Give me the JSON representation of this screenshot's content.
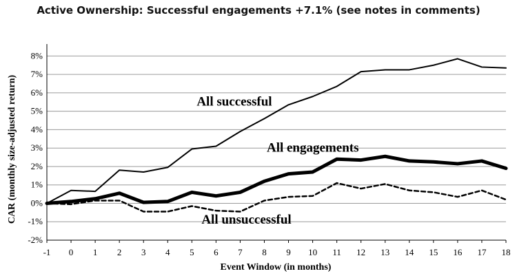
{
  "chart_data": {
    "type": "line",
    "title": "Active Ownership: Successful engagements +7.1% (see notes in comments)",
    "xlabel": "Event Window (in months)",
    "ylabel": "CAR (monthly size-adjusted return)",
    "x": [
      -1,
      0,
      1,
      2,
      3,
      4,
      5,
      6,
      7,
      8,
      9,
      10,
      11,
      12,
      13,
      14,
      15,
      16,
      17,
      18
    ],
    "xticks": [
      "-1",
      "0",
      "1",
      "2",
      "3",
      "4",
      "5",
      "6",
      "7",
      "8",
      "9",
      "10",
      "11",
      "12",
      "13",
      "14",
      "15",
      "16",
      "17",
      "18"
    ],
    "ylim": [
      -2,
      8.5
    ],
    "yticks": [
      "-2%",
      "-1%",
      "0%",
      "1%",
      "2%",
      "3%",
      "4%",
      "5%",
      "6%",
      "7%",
      "8%"
    ],
    "grid": "horizontal",
    "legend": "none",
    "series": [
      {
        "name": "All successful",
        "style": "thin-solid",
        "color": "#000000",
        "values": [
          0.0,
          0.7,
          0.65,
          1.8,
          1.7,
          1.95,
          2.95,
          3.1,
          3.9,
          4.6,
          5.35,
          5.8,
          6.35,
          7.15,
          7.25,
          7.25,
          7.5,
          7.85,
          7.4,
          7.35
        ]
      },
      {
        "name": "All engagements",
        "style": "thick-solid",
        "color": "#000000",
        "values": [
          0.0,
          0.1,
          0.25,
          0.55,
          0.05,
          0.1,
          0.6,
          0.4,
          0.6,
          1.2,
          1.6,
          1.7,
          2.4,
          2.35,
          2.55,
          2.3,
          2.25,
          2.15,
          2.3,
          1.9
        ]
      },
      {
        "name": "All unsuccessful",
        "style": "dashed",
        "color": "#000000",
        "values": [
          0.0,
          -0.05,
          0.15,
          0.15,
          -0.45,
          -0.45,
          -0.15,
          -0.4,
          -0.45,
          0.15,
          0.35,
          0.4,
          1.1,
          0.8,
          1.05,
          0.7,
          0.6,
          0.35,
          0.7,
          0.2
        ]
      }
    ],
    "annotations": [
      {
        "text": "All successful",
        "x": 5.2,
        "y": 5.3
      },
      {
        "text": "All engagements",
        "x": 8.1,
        "y": 2.8
      },
      {
        "text": "All unsuccessful",
        "x": 5.4,
        "y": -1.1
      }
    ]
  }
}
